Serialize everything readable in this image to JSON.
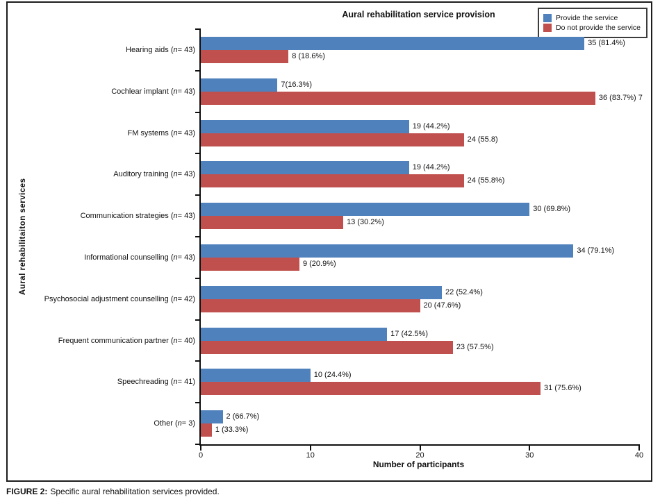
{
  "chart_data": {
    "type": "bar",
    "orientation": "horizontal",
    "title": "Aural rehabilitation service provision",
    "xlabel": "Number of participants",
    "ylabel": "Aural rehabilitaiton services",
    "xlim": [
      0,
      40
    ],
    "xticks": [
      0,
      10,
      20,
      30,
      40
    ],
    "grid": false,
    "legend_position": "top-right",
    "categories": [
      {
        "name": "Hearing aids",
        "n": "43"
      },
      {
        "name": "Cochlear implant",
        "n": "43"
      },
      {
        "name": "FM systems",
        "n": "43"
      },
      {
        "name": "Auditory training",
        "n": "43"
      },
      {
        "name": "Communication strategies",
        "n": "43"
      },
      {
        "name": "Informational counselling",
        "n": "43"
      },
      {
        "name": "Psychosocial adjustment counselling",
        "n": "42"
      },
      {
        "name": "Frequent communication partner",
        "n": "40"
      },
      {
        "name": "Speechreading",
        "n": "41"
      },
      {
        "name": "Other",
        "n": "3"
      }
    ],
    "series": [
      {
        "name": "Provide the service",
        "color": "#4F81BD",
        "values": [
          35,
          7,
          19,
          19,
          30,
          34,
          22,
          17,
          10,
          2
        ],
        "labels": [
          "35 (81.4%)",
          "7(16.3%)",
          "19 (44.2%)",
          "19 (44.2%)",
          "30 (69.8%)",
          "34 (79.1%)",
          "22 (52.4%)",
          "17 (42.5%)",
          "10 (24.4%)",
          "2 (66.7%)"
        ]
      },
      {
        "name": "Do not provide the service",
        "color": "#C0504D",
        "values": [
          8,
          36,
          24,
          24,
          13,
          9,
          20,
          23,
          31,
          1
        ],
        "labels": [
          "8 (18.6%)",
          "36 (83.7%) 7",
          "24 (55.8)",
          "24 (55.8%)",
          "13 (30.2%)",
          "9 (20.9%)",
          "20 (47.6%)",
          "23 (57.5%)",
          "31 (75.6%)",
          "1 (33.3%)"
        ]
      }
    ],
    "caption": {
      "prefix": "FIGURE 2:",
      "text": "Specific aural rehabilitation services provided."
    }
  }
}
